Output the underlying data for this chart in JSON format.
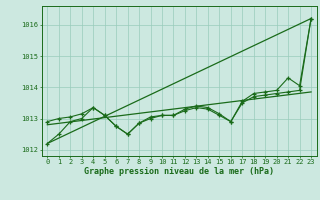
{
  "title": "Graphe pression niveau de la mer (hPa)",
  "background_color": "#cce8e0",
  "grid_color": "#99ccbb",
  "line_color": "#1a6b1a",
  "xlim": [
    -0.5,
    23.5
  ],
  "ylim": [
    1011.8,
    1016.6
  ],
  "yticks": [
    1012,
    1013,
    1014,
    1015,
    1016
  ],
  "xticks": [
    0,
    1,
    2,
    3,
    4,
    5,
    6,
    7,
    8,
    9,
    10,
    11,
    12,
    13,
    14,
    15,
    16,
    17,
    18,
    19,
    20,
    21,
    22,
    23
  ],
  "straight_line1": [
    [
      0,
      1012.2
    ],
    [
      23,
      1016.2
    ]
  ],
  "straight_line2": [
    [
      0,
      1012.8
    ],
    [
      23,
      1013.85
    ]
  ],
  "zigzag1": [
    1012.9,
    1013.0,
    1013.05,
    1013.15,
    1013.35,
    1013.1,
    1012.75,
    1012.5,
    1012.85,
    1013.0,
    1013.1,
    1013.1,
    1013.25,
    1013.35,
    1013.3,
    1013.1,
    1012.9,
    1013.5,
    1013.7,
    1013.75,
    1013.8,
    1013.85,
    1013.9,
    1016.2
  ],
  "zigzag2": [
    1012.2,
    1012.5,
    1012.9,
    1013.0,
    1013.35,
    1013.1,
    1012.75,
    1012.5,
    1012.85,
    1013.05,
    1013.1,
    1013.1,
    1013.3,
    1013.4,
    1013.35,
    1013.15,
    1012.9,
    1013.55,
    1013.8,
    1013.85,
    1013.9,
    1014.3,
    1014.05,
    1016.2
  ],
  "x": [
    0,
    1,
    2,
    3,
    4,
    5,
    6,
    7,
    8,
    9,
    10,
    11,
    12,
    13,
    14,
    15,
    16,
    17,
    18,
    19,
    20,
    21,
    22,
    23
  ]
}
